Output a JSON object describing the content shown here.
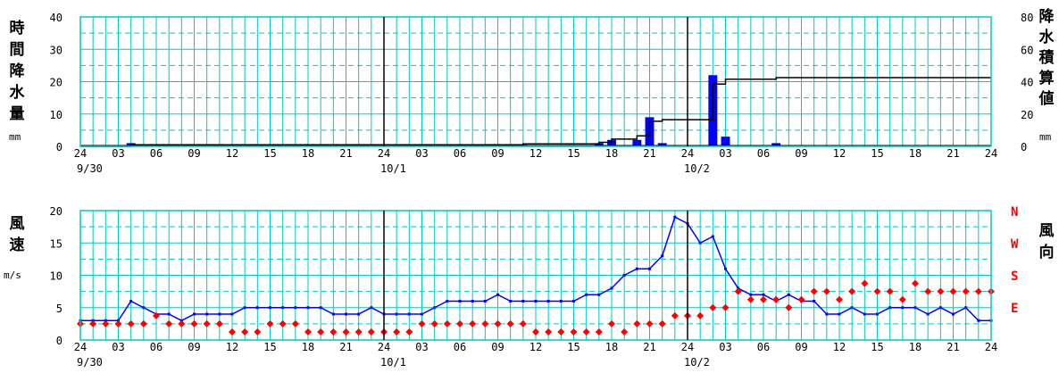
{
  "chart_data": [
    {
      "type": "bar+line",
      "ylabel_left": "時間降水量",
      "ylabel_left_unit": "mm",
      "ylabel_right": "降水積算値",
      "ylabel_right_unit": "mm",
      "ylim_left": [
        0,
        40
      ],
      "ylim_right": [
        0,
        80
      ],
      "yticks_left": [
        "0",
        "10",
        "20",
        "30",
        "40"
      ],
      "yticks_right": [
        "0",
        "20",
        "40",
        "60",
        "80"
      ],
      "x_tick_labels": [
        "24",
        "03",
        "06",
        "09",
        "12",
        "15",
        "18",
        "21",
        "24",
        "03",
        "06",
        "09",
        "12",
        "15",
        "18",
        "21",
        "24",
        "03",
        "06",
        "09",
        "12",
        "15",
        "18",
        "21",
        "24"
      ],
      "date_labels": [
        "9/30",
        "10/1",
        "10/2"
      ],
      "grid": true,
      "colors": {
        "bar": "#0000ff",
        "line": "#000000",
        "grid": "#00c8c8",
        "day_line": "#000000"
      },
      "hourly_precip": [
        {
          "hour": 4,
          "value": 1
        },
        {
          "hour": 35,
          "value": 0.5
        },
        {
          "hour": 41,
          "value": 1
        },
        {
          "hour": 42,
          "value": 2
        },
        {
          "hour": 44,
          "value": 2
        },
        {
          "hour": 45,
          "value": 9
        },
        {
          "hour": 46,
          "value": 1
        },
        {
          "hour": 50,
          "value": 22
        },
        {
          "hour": 51,
          "value": 3
        },
        {
          "hour": 55,
          "value": 1
        }
      ],
      "cumulative": [
        [
          0,
          0
        ],
        [
          4,
          1
        ],
        [
          35,
          1.5
        ],
        [
          41,
          2.5
        ],
        [
          42,
          4.5
        ],
        [
          44,
          6.5
        ],
        [
          45,
          15.5
        ],
        [
          46,
          16.5
        ],
        [
          49,
          16.5
        ],
        [
          50,
          38.5
        ],
        [
          51,
          41.5
        ],
        [
          55,
          42.5
        ],
        [
          72,
          42.5
        ]
      ]
    },
    {
      "type": "line+scatter",
      "ylabel_left": "風速",
      "ylabel_left_unit": "m/s",
      "ylabel_right": "風向",
      "ylim": [
        0,
        20
      ],
      "yticks_left": [
        "0",
        "5",
        "10",
        "15",
        "20"
      ],
      "direction_labels": [
        "N",
        "W",
        "S",
        "E"
      ],
      "x_tick_labels": [
        "24",
        "03",
        "06",
        "09",
        "12",
        "15",
        "18",
        "21",
        "24",
        "03",
        "06",
        "09",
        "12",
        "15",
        "18",
        "21",
        "24",
        "03",
        "06",
        "09",
        "12",
        "15",
        "18",
        "21",
        "24"
      ],
      "date_labels": [
        "9/30",
        "10/1",
        "10/2"
      ],
      "grid": true,
      "colors": {
        "speed": "#0000ff",
        "direction": "#ff0000",
        "grid": "#00c8c8"
      },
      "wind_speed": [
        3,
        3,
        3,
        3,
        6,
        5,
        4,
        4,
        3,
        4,
        4,
        4,
        4,
        5,
        5,
        5,
        5,
        5,
        5,
        5,
        4,
        4,
        4,
        5,
        4,
        4,
        4,
        4,
        5,
        6,
        6,
        6,
        6,
        7,
        6,
        6,
        6,
        6,
        6,
        6,
        7,
        7,
        8,
        10,
        11,
        11,
        13,
        19,
        18,
        15,
        16,
        11,
        8,
        7,
        7,
        6,
        7,
        6,
        6,
        4,
        4,
        5,
        4,
        4,
        5,
        5,
        5,
        4,
        5,
        4,
        5,
        3,
        3,
        4,
        4
      ],
      "wind_direction_y": [
        2.5,
        2.5,
        2.5,
        2.5,
        2.5,
        2.5,
        3.75,
        2.5,
        2.5,
        2.5,
        2.5,
        2.5,
        1.25,
        1.25,
        1.25,
        2.5,
        2.5,
        2.5,
        1.25,
        1.25,
        1.25,
        1.25,
        1.25,
        1.25,
        1.25,
        1.25,
        1.25,
        2.5,
        2.5,
        2.5,
        2.5,
        2.5,
        2.5,
        2.5,
        2.5,
        2.5,
        1.25,
        1.25,
        1.25,
        1.25,
        1.25,
        1.25,
        2.5,
        1.25,
        2.5,
        2.5,
        2.5,
        3.75,
        3.75,
        3.75,
        5,
        5,
        7.5,
        6.25,
        6.25,
        6.25,
        5,
        6.25,
        7.5,
        7.5,
        6.25,
        7.5,
        8.75,
        7.5,
        7.5,
        6.25,
        8.75,
        7.5,
        7.5,
        7.5,
        7.5,
        7.5,
        7.5,
        7.5,
        7.5
      ]
    }
  ]
}
